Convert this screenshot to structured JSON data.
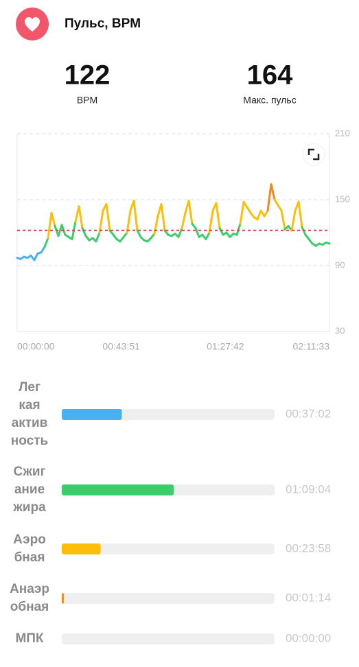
{
  "header": {
    "title": "Пульс, BPM"
  },
  "stats": [
    {
      "value": 122,
      "label": "BPM"
    },
    {
      "value": 164,
      "label": "Макс. пульс"
    }
  ],
  "chart_data": {
    "type": "line",
    "x_labels": [
      "00:00:00",
      "00:43:51",
      "01:27:42",
      "02:11:33"
    ],
    "ylim": [
      30,
      210
    ],
    "yticks": [
      30,
      90,
      150,
      210
    ],
    "grid": true,
    "average": 122,
    "average_color": "#e0404a",
    "color_thresholds": [
      110,
      132,
      155
    ],
    "series": [
      {
        "colors": [
          "#4ab0ef",
          "#3ccd6b",
          "#fbbf0b",
          "#f08a1e"
        ],
        "values": [
          97,
          96,
          98,
          97,
          99,
          95,
          101,
          102,
          107,
          115,
          138,
          126,
          117,
          127,
          118,
          116,
          114,
          130,
          144,
          124,
          117,
          113,
          115,
          112,
          120,
          140,
          146,
          122,
          118,
          114,
          112,
          116,
          120,
          140,
          149,
          122,
          116,
          113,
          112,
          115,
          119,
          135,
          146,
          122,
          118,
          117,
          119,
          116,
          124,
          138,
          149,
          128,
          124,
          116,
          118,
          114,
          120,
          140,
          147,
          124,
          118,
          120,
          116,
          119,
          118,
          128,
          148,
          143,
          138,
          134,
          132,
          140,
          135,
          140,
          164,
          150,
          145,
          140,
          123,
          126,
          122,
          140,
          148,
          125,
          118,
          114,
          110,
          108,
          110,
          109,
          111,
          110
        ]
      }
    ]
  },
  "zones": [
    {
      "name": "Лег\nкая\nактив\nность",
      "duration": "00:37:02",
      "color": "#4ab0ef"
    },
    {
      "name": "Сжиг\nание\nжира",
      "duration": "01:09:04",
      "color": "#3ccd6b"
    },
    {
      "name": "Аэро\nбная",
      "duration": "00:23:58",
      "color": "#fbbf0b"
    },
    {
      "name": "Анаэр\nобная",
      "duration": "00:01:14",
      "color": "#f08a1e"
    },
    {
      "name": "МПК",
      "duration": "00:00:00",
      "color": "#e0404a"
    }
  ]
}
